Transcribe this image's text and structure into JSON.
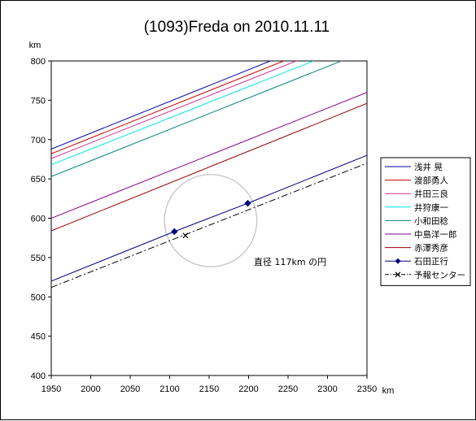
{
  "chart_data": {
    "type": "line",
    "title": "(1093)Freda on 2010.11.11",
    "xlabel": "km",
    "ylabel": "km",
    "xlim": [
      1950,
      2350
    ],
    "ylim": [
      400,
      800
    ],
    "x_ticks": [
      "1950",
      "2000",
      "2050",
      "2100",
      "2150",
      "2200",
      "2250",
      "2300",
      "2350"
    ],
    "y_ticks": [
      "400",
      "450",
      "500",
      "550",
      "600",
      "650",
      "700",
      "750",
      "800"
    ],
    "grid": false,
    "legend_position": "right",
    "annotation": "直径 117km の円",
    "circle": {
      "cx": 2152,
      "cy": 597,
      "r": 58.5,
      "color": "#c8c8c8"
    },
    "series": [
      {
        "name": "浅井 晃",
        "color": "#0000aa",
        "style": "solid",
        "x": [
          1950,
          2235
        ],
        "y": [
          688,
          803
        ]
      },
      {
        "name": "渡部勇人",
        "color": "#cc0000",
        "style": "solid",
        "x": [
          1950,
          2252
        ],
        "y": [
          682,
          803
        ]
      },
      {
        "name": "井田三良",
        "color": "#cc3399",
        "style": "solid",
        "x": [
          1950,
          2268
        ],
        "y": [
          676,
          803
        ]
      },
      {
        "name": "井狩康一",
        "color": "#00e5ee",
        "style": "solid",
        "x": [
          1950,
          2290
        ],
        "y": [
          668,
          803
        ]
      },
      {
        "name": "小和田稔",
        "color": "#008080",
        "style": "solid",
        "x": [
          1950,
          2325
        ],
        "y": [
          653,
          803
        ]
      },
      {
        "name": "中島洋一郎",
        "color": "#880088",
        "style": "solid",
        "x": [
          1950,
          2350
        ],
        "y": [
          600,
          760
        ]
      },
      {
        "name": "赤澤秀彦",
        "color": "#990000",
        "style": "solid",
        "x": [
          1950,
          2350
        ],
        "y": [
          584,
          746
        ]
      },
      {
        "name": "石田正行",
        "color": "#000080",
        "style": "solid",
        "marker": "diamond",
        "x": [
          1950,
          2106,
          2199,
          2350
        ],
        "y": [
          520,
          583,
          619,
          680
        ],
        "marker_x": [
          2106,
          2199
        ],
        "marker_y": [
          583,
          619
        ]
      },
      {
        "name": "予報センター",
        "color": "#000000",
        "style": "dashdot",
        "marker": "x",
        "x": [
          1950,
          2350
        ],
        "y": [
          512,
          670
        ],
        "marker_x": [
          2120
        ],
        "marker_y": [
          578
        ]
      }
    ]
  }
}
